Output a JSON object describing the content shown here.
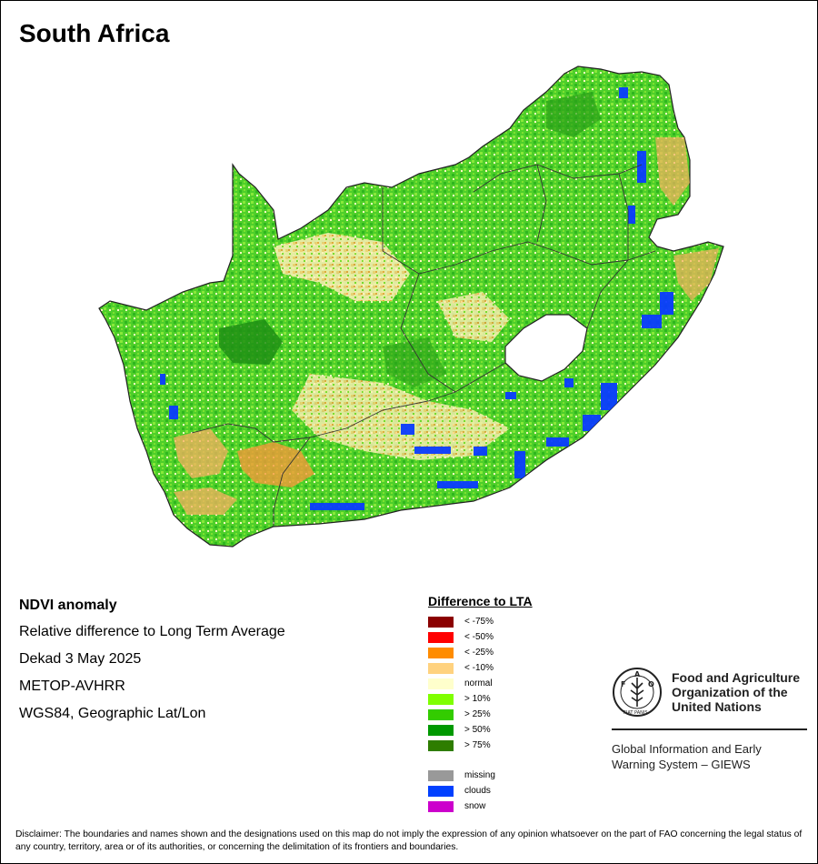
{
  "title": "South Africa",
  "info": {
    "product": "NDVI anomaly",
    "description": "Relative difference to Long Term Average",
    "period": "Dekad 3 May 2025",
    "sensor": "METOP-AVHRR",
    "projection": "WGS84, Geographic Lat/Lon"
  },
  "legend": {
    "title": "Difference to LTA",
    "items": [
      {
        "label": "< -75%",
        "color": "#8b0000"
      },
      {
        "label": "< -50%",
        "color": "#ff0000"
      },
      {
        "label": "< -25%",
        "color": "#ff8c00"
      },
      {
        "label": "< -10%",
        "color": "#ffd27f"
      },
      {
        "label": "normal",
        "color": "#ffffcc"
      },
      {
        "label": "> 10%",
        "color": "#7fff00"
      },
      {
        "label": "> 25%",
        "color": "#33cc00"
      },
      {
        "label": "> 50%",
        "color": "#009900"
      },
      {
        "label": "> 75%",
        "color": "#2e7d00"
      }
    ],
    "extra_items": [
      {
        "label": "missing",
        "color": "#999999"
      },
      {
        "label": "clouds",
        "color": "#0040ff"
      },
      {
        "label": "snow",
        "color": "#cc00cc"
      }
    ]
  },
  "organization": {
    "line1": "Food and Agriculture",
    "line2": "Organization of the",
    "line3": "United Nations",
    "logo_text": "FAO",
    "logo_motto": "FIAT PANIS",
    "system_line1": "Global Information and Early",
    "system_line2": "Warning System – GIEWS"
  },
  "disclaimer": "Disclaimer: The boundaries and names shown and the designations used on this map do not imply the expression of any opinion whatsoever on the part of FAO concerning the legal status of any country, territory, area or of its authorities, or concerning the delimitation of its frontiers and boundaries."
}
